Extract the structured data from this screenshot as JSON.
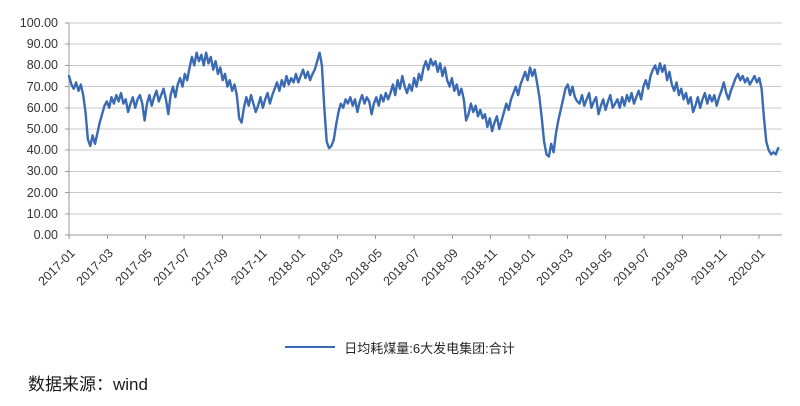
{
  "chart_data": {
    "type": "line",
    "title": "",
    "grid": "horizontal",
    "legend_position": "bottom",
    "y_axis": {
      "min": 0,
      "max": 100,
      "tick_labels": [
        "100.00",
        "90.00",
        "80.00",
        "70.00",
        "60.00",
        "50.00",
        "40.00",
        "30.00",
        "20.00",
        "10.00",
        "0.00"
      ]
    },
    "x_axis": {
      "tick_labels": [
        "2017-01",
        "2017-03",
        "2017-05",
        "2017-07",
        "2017-09",
        "2017-11",
        "2018-01",
        "2018-03",
        "2018-05",
        "2018-07",
        "2018-09",
        "2018-11",
        "2019-01",
        "2019-03",
        "2019-05",
        "2019-07",
        "2019-09",
        "2019-11",
        "2020-01"
      ],
      "months_per_tick": 2,
      "axis_span_months": 37.2,
      "series_span_months": 37.0
    },
    "series": [
      {
        "name": "日均耗煤量:6大发电集团:合计",
        "color": "#3a6ab3",
        "unit": "万吨",
        "sampling": "approx. every 3.8 days, 2017-01 to 2020-02",
        "values": [
          75,
          71,
          69,
          72,
          68,
          71,
          66,
          58,
          45,
          42,
          47,
          43,
          48,
          53,
          57,
          61,
          63,
          60,
          65,
          62,
          66,
          63,
          67,
          62,
          64,
          58,
          62,
          65,
          60,
          64,
          66,
          62,
          54,
          62,
          66,
          61,
          65,
          68,
          63,
          66,
          69,
          64,
          57,
          66,
          70,
          65,
          71,
          74,
          70,
          76,
          73,
          79,
          84,
          80,
          86,
          82,
          85,
          80,
          86,
          81,
          84,
          78,
          82,
          76,
          79,
          73,
          76,
          70,
          73,
          68,
          71,
          66,
          55,
          53,
          60,
          65,
          61,
          66,
          62,
          58,
          61,
          65,
          60,
          64,
          67,
          62,
          66,
          69,
          72,
          68,
          73,
          70,
          75,
          71,
          74,
          72,
          76,
          72,
          75,
          78,
          74,
          77,
          73,
          76,
          78,
          82,
          86,
          80,
          60,
          44,
          41,
          42,
          45,
          52,
          58,
          62,
          60,
          64,
          62,
          65,
          61,
          64,
          58,
          63,
          66,
          62,
          65,
          63,
          57,
          62,
          65,
          61,
          66,
          63,
          67,
          64,
          67,
          71,
          66,
          73,
          69,
          75,
          70,
          67,
          71,
          68,
          74,
          70,
          76,
          73,
          79,
          82,
          78,
          83,
          80,
          82,
          77,
          81,
          75,
          79,
          73,
          70,
          74,
          68,
          71,
          66,
          69,
          64,
          54,
          57,
          62,
          58,
          61,
          56,
          59,
          55,
          57,
          51,
          55,
          49,
          53,
          56,
          50,
          54,
          58,
          62,
          59,
          64,
          67,
          70,
          66,
          71,
          74,
          77,
          73,
          79,
          75,
          78,
          72,
          65,
          55,
          44,
          38,
          37,
          43,
          39,
          48,
          54,
          59,
          64,
          69,
          71,
          66,
          70,
          65,
          63,
          62,
          66,
          61,
          64,
          67,
          60,
          63,
          65,
          57,
          61,
          64,
          59,
          63,
          66,
          60,
          62,
          64,
          60,
          65,
          61,
          66,
          63,
          67,
          62,
          65,
          68,
          64,
          70,
          73,
          69,
          75,
          78,
          80,
          76,
          81,
          77,
          80,
          73,
          77,
          71,
          68,
          72,
          66,
          69,
          64,
          67,
          62,
          65,
          58,
          61,
          65,
          60,
          64,
          67,
          62,
          66,
          63,
          66,
          61,
          65,
          68,
          72,
          67,
          64,
          68,
          71,
          74,
          76,
          73,
          75,
          72,
          74,
          71,
          73,
          75,
          72,
          74,
          69,
          55,
          44,
          40,
          38,
          39,
          38,
          41
        ]
      }
    ]
  },
  "legend": {
    "label": "日均耗煤量:6大发电集团:合计"
  },
  "footer": {
    "source_text": "数据来源：wind"
  }
}
